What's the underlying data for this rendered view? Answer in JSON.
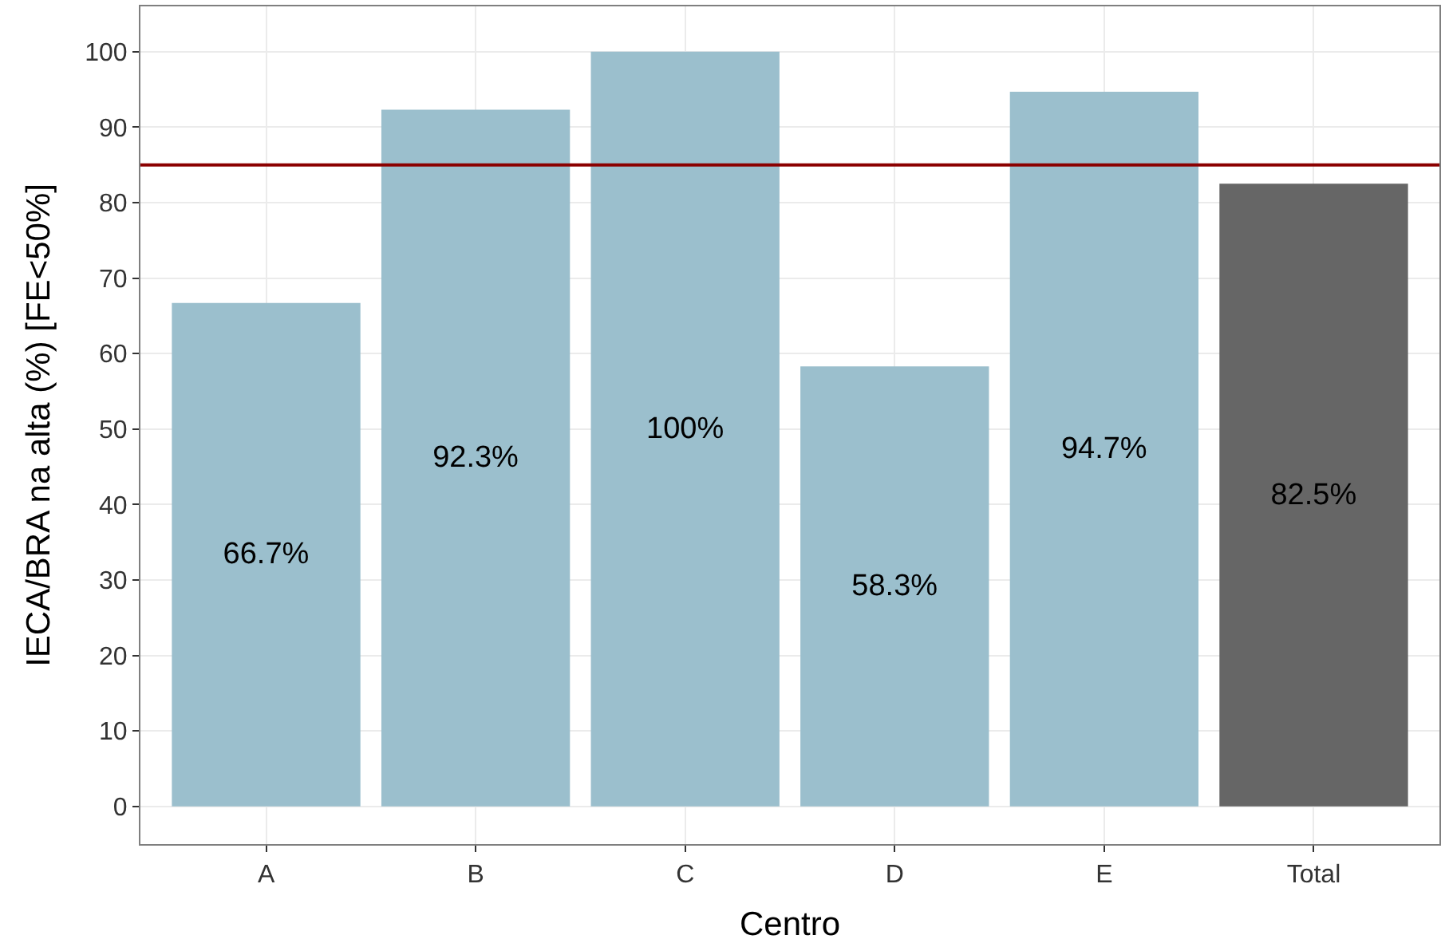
{
  "chart_data": {
    "type": "bar",
    "xlabel": "Centro",
    "ylabel": "IECA/BRA na alta (%) [FE<50%]",
    "categories": [
      "A",
      "B",
      "C",
      "D",
      "E",
      "Total"
    ],
    "values": [
      66.7,
      92.3,
      100,
      58.3,
      94.7,
      82.5
    ],
    "colors": [
      "#9bbfcd",
      "#9bbfcd",
      "#9bbfcd",
      "#9bbfcd",
      "#9bbfcd",
      "#666666"
    ],
    "value_labels": [
      "66.7%",
      "92.3%",
      "100%",
      "58.3%",
      "94.7%",
      "82.5%"
    ],
    "ylim": [
      -5,
      106
    ],
    "yticks": [
      0,
      10,
      20,
      30,
      40,
      50,
      60,
      70,
      80,
      90,
      100
    ],
    "ref_lines": [
      {
        "axis": "y",
        "value": 85,
        "color": "#8b0000"
      }
    ],
    "grid": true,
    "legend": false
  }
}
